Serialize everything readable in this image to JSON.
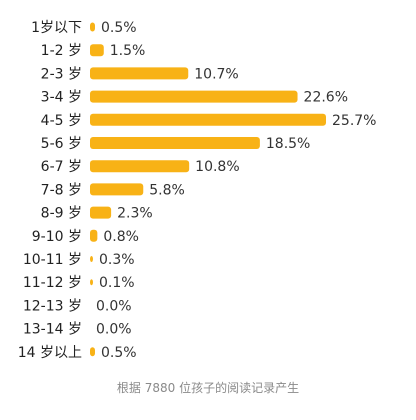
{
  "colors": {
    "bar": "#F8B216",
    "label": "#222222",
    "value_text": "#333333",
    "footnote": "#8A8A8A",
    "background": "#FFFFFF"
  },
  "chart_data": {
    "type": "bar",
    "orientation": "horizontal",
    "categories": [
      "1岁以下",
      "1-2 岁",
      "2-3 岁",
      "3-4 岁",
      "4-5 岁",
      "5-6 岁",
      "6-7 岁",
      "7-8 岁",
      "8-9 岁",
      "9-10 岁",
      "10-11 岁",
      "11-12 岁",
      "12-13 岁",
      "13-14 岁",
      "14 岁以上"
    ],
    "values": [
      0.5,
      1.5,
      10.7,
      22.6,
      25.7,
      18.5,
      10.8,
      5.8,
      2.3,
      0.8,
      0.3,
      0.1,
      0.0,
      0.0,
      0.5
    ],
    "value_labels": [
      "0.5%",
      "1.5%",
      "10.7%",
      "22.6%",
      "25.7%",
      "18.5%",
      "10.8%",
      "5.8%",
      "2.3%",
      "0.8%",
      "0.3%",
      "0.1%",
      "0.0%",
      "0.0%",
      "0.5%"
    ],
    "unit": "%",
    "xlim": [
      0,
      25.7
    ],
    "grid": false,
    "legend": "none",
    "footnote": "根据 7880 位孩子的阅读记录产生"
  }
}
